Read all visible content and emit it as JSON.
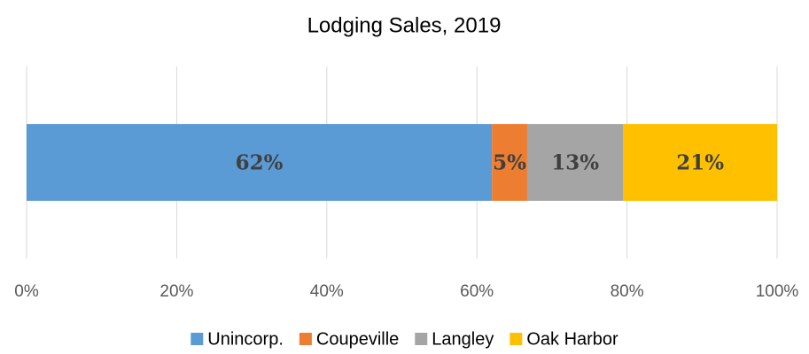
{
  "chart_data": {
    "type": "stacked_barh",
    "title": "Lodging Sales, 2019",
    "categories": [
      null
    ],
    "series": [
      {
        "name": "Unincorp.",
        "color": "#5b9bd5",
        "values": [
          62.0
        ],
        "value_labels": [
          "62%"
        ]
      },
      {
        "name": "Coupeville",
        "color": "#ed7d31",
        "values": [
          4.7
        ],
        "value_labels": [
          "5%"
        ]
      },
      {
        "name": "Langley",
        "color": "#a5a5a5",
        "values": [
          12.8
        ],
        "value_labels": [
          "13%"
        ]
      },
      {
        "name": "Oak Harbor",
        "color": "#ffc000",
        "values": [
          20.5
        ],
        "value_labels": [
          "21%"
        ]
      }
    ],
    "xlim": [
      0,
      100
    ],
    "xticks": [
      {
        "value": 0,
        "label": "0%"
      },
      {
        "value": 20,
        "label": "20%"
      },
      {
        "value": 40,
        "label": "40%"
      },
      {
        "value": 60,
        "label": "60%"
      },
      {
        "value": 80,
        "label": "80%"
      },
      {
        "value": 100,
        "label": "100%"
      }
    ],
    "grid": true,
    "legend": "bottom"
  }
}
